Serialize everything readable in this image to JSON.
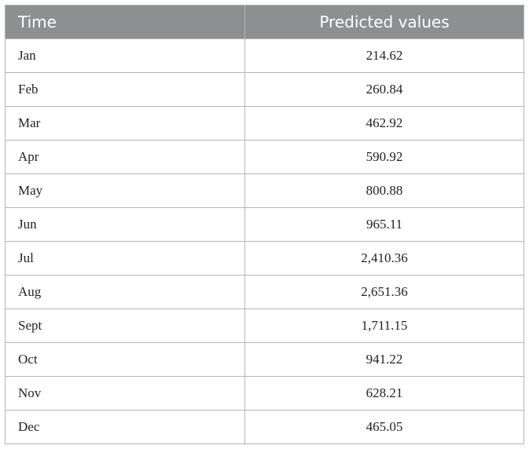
{
  "table": {
    "header": [
      "Time",
      "Predicted values"
    ],
    "rows": [
      [
        "Jan",
        "214.62"
      ],
      [
        "Feb",
        "260.84"
      ],
      [
        "Mar",
        "462.92"
      ],
      [
        "Apr",
        "590.92"
      ],
      [
        "May",
        "800.88"
      ],
      [
        "Jun",
        "965.11"
      ],
      [
        "Jul",
        "2,410.36"
      ],
      [
        "Aug",
        "2,651.36"
      ],
      [
        "Sept",
        "1,711.15"
      ],
      [
        "Oct",
        "941.22"
      ],
      [
        "Nov",
        "628.21"
      ],
      [
        "Dec",
        "465.05"
      ]
    ]
  }
}
